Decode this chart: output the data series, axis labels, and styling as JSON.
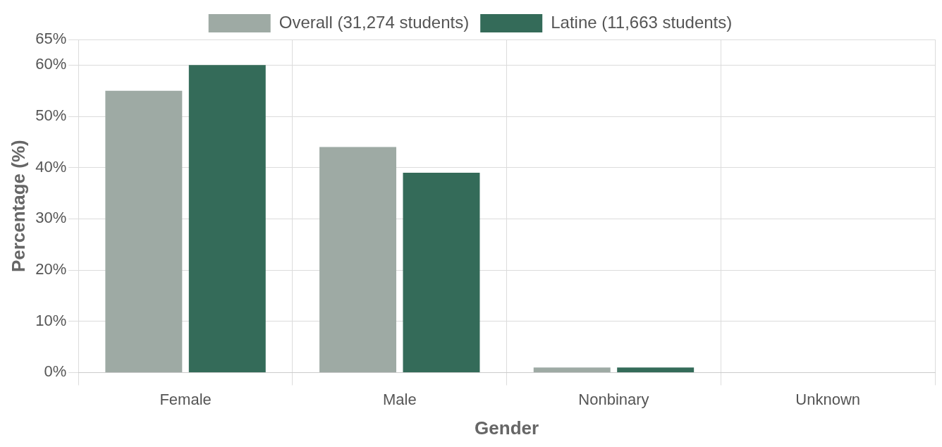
{
  "chart_data": {
    "type": "bar",
    "xlabel": "Gender",
    "ylabel": "Percentage (%)",
    "categories": [
      "Female",
      "Male",
      "Nonbinary",
      "Unknown"
    ],
    "series": [
      {
        "name": "Overall (31,274 students)",
        "color": "#9eaaa4",
        "values": [
          55,
          44,
          1,
          0
        ]
      },
      {
        "name": "Latine (11,663 students)",
        "color": "#346b59",
        "values": [
          60,
          39,
          1,
          0
        ]
      }
    ],
    "ylim": [
      0,
      65
    ],
    "yticks": [
      {
        "value": 0,
        "label": "0%"
      },
      {
        "value": 10,
        "label": "10%"
      },
      {
        "value": 20,
        "label": "20%"
      },
      {
        "value": 30,
        "label": "30%"
      },
      {
        "value": 40,
        "label": "40%"
      },
      {
        "value": 50,
        "label": "50%"
      },
      {
        "value": 60,
        "label": "60%"
      },
      {
        "value": 65,
        "label": "65%"
      }
    ],
    "grid": true,
    "legend": "top"
  }
}
